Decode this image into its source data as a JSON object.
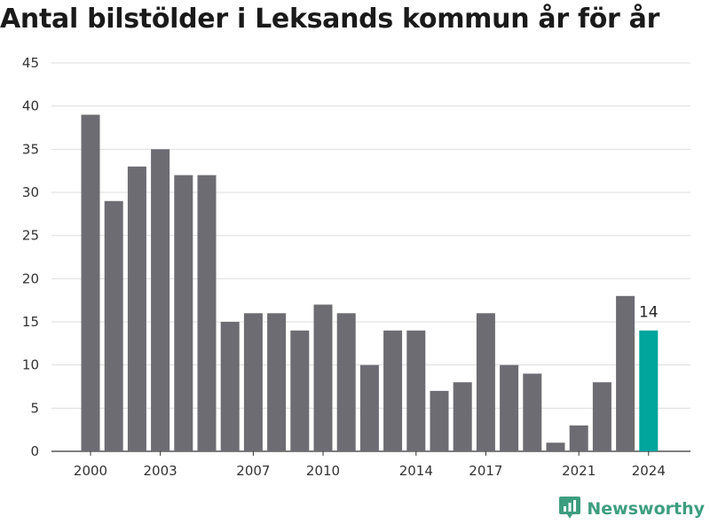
{
  "chart_data": {
    "type": "bar",
    "title": "Antal bilstölder i Leksands kommun år för år",
    "categories": [
      "2000",
      "2001",
      "2002",
      "2003",
      "2004",
      "2005",
      "2006",
      "2007",
      "2008",
      "2009",
      "2010",
      "2011",
      "2012",
      "2013",
      "2014",
      "2015",
      "2016",
      "2017",
      "2018",
      "2019",
      "2020",
      "2021",
      "2022",
      "2023",
      "2024"
    ],
    "values": [
      39,
      29,
      33,
      35,
      32,
      32,
      15,
      16,
      16,
      14,
      17,
      16,
      10,
      14,
      14,
      7,
      8,
      16,
      10,
      9,
      1,
      3,
      8,
      18,
      14
    ],
    "x_tick_labels": [
      "2000",
      "2003",
      "2007",
      "2010",
      "2014",
      "2017",
      "2021",
      "2024"
    ],
    "y_ticks": [
      0,
      5,
      10,
      15,
      20,
      25,
      30,
      35,
      40,
      45
    ],
    "ylim": [
      0,
      45
    ],
    "grid": true,
    "bar_color": "#6d6c72",
    "highlight_color": "#00a59c",
    "highlight_category": "2024",
    "data_labels": [
      {
        "category": "2024",
        "text": "14"
      }
    ]
  },
  "brand": {
    "name": "Newsworthy",
    "color": "#3d9e7f",
    "icon": "newsworthy-logo-icon"
  }
}
